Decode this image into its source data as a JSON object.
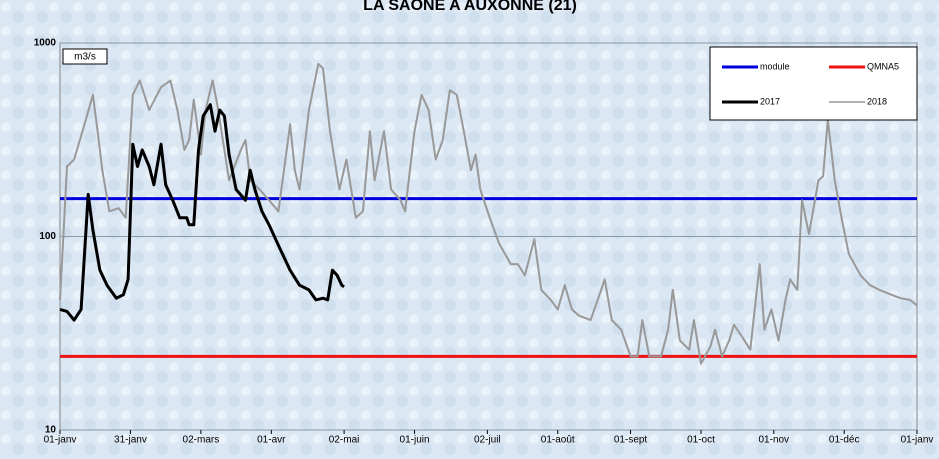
{
  "chart_data": {
    "type": "line",
    "title": "LA SAONE A AUXONNE (21)",
    "y_label": "m3/s",
    "log_y": true,
    "grid": true,
    "legend": "top-right",
    "xlim": [
      0,
      365
    ],
    "xticks": [
      {
        "value": 0,
        "label": "01-janv"
      },
      {
        "value": 30,
        "label": "31-janv"
      },
      {
        "value": 60,
        "label": "02-mars"
      },
      {
        "value": 90,
        "label": "01-avr"
      },
      {
        "value": 121,
        "label": "02-mai"
      },
      {
        "value": 151,
        "label": "01-juin"
      },
      {
        "value": 182,
        "label": "02-juil"
      },
      {
        "value": 212,
        "label": "01-août"
      },
      {
        "value": 243,
        "label": "01-sept"
      },
      {
        "value": 273,
        "label": "01-oct"
      },
      {
        "value": 304,
        "label": "01-nov"
      },
      {
        "value": 334,
        "label": "01-déc"
      },
      {
        "value": 365,
        "label": "01-janv"
      }
    ],
    "ylim": [
      10,
      1000
    ],
    "yticks": [
      10,
      100,
      1000
    ],
    "reference_lines": [
      {
        "name": "module",
        "color": "#0000dd",
        "value": 157
      },
      {
        "name": "QMNA5",
        "color": "#ee1111",
        "value": 24
      }
    ],
    "series": [
      {
        "name": "2017",
        "color": "#000000",
        "x": [
          0,
          3,
          6,
          9,
          12,
          14,
          17,
          20,
          24,
          27,
          29,
          31,
          33,
          35,
          38,
          40,
          43,
          45,
          48,
          51,
          54,
          55,
          57,
          59,
          61,
          64,
          66,
          68,
          70,
          72,
          75,
          79,
          81,
          83,
          86,
          89,
          94,
          98,
          102,
          106,
          109,
          112,
          114,
          116,
          118,
          120,
          121
        ],
        "values": [
          42,
          41,
          37,
          42,
          165,
          108,
          67,
          56,
          48,
          50,
          60,
          300,
          230,
          280,
          230,
          185,
          300,
          185,
          154,
          125,
          125,
          115,
          115,
          280,
          420,
          480,
          350,
          450,
          420,
          265,
          175,
          154,
          220,
          175,
          135,
          115,
          85,
          67,
          56,
          53,
          47,
          48,
          47,
          67,
          63,
          56,
          55
        ]
      },
      {
        "name": "2018",
        "color": "#999999",
        "x": [
          0,
          3,
          6,
          11,
          14,
          16,
          18,
          21,
          25,
          28,
          31,
          34,
          38,
          43,
          47,
          50,
          53,
          55,
          57,
          60,
          62,
          65,
          67,
          70,
          72,
          77,
          79,
          81,
          85,
          89,
          93,
          96,
          98,
          100,
          102,
          106,
          110,
          112,
          115,
          119,
          122,
          126,
          129,
          132,
          134,
          138,
          141,
          145,
          147,
          151,
          154,
          157,
          160,
          163,
          166,
          169,
          172,
          175,
          177,
          179,
          183,
          187,
          192,
          195,
          198,
          202,
          205,
          209,
          212,
          215,
          218,
          221,
          226,
          229,
          232,
          235,
          239,
          243,
          246,
          248,
          251,
          256,
          259,
          261,
          264,
          268,
          270,
          273,
          277,
          279,
          282,
          285,
          287,
          290,
          294,
          298,
          300,
          303,
          306,
          309,
          311,
          314,
          316,
          319,
          323,
          325,
          327,
          330,
          333,
          336,
          341,
          345,
          349,
          354,
          358,
          362,
          365
        ],
        "values": [
          47,
          230,
          250,
          400,
          540,
          350,
          220,
          135,
          140,
          125,
          540,
          640,
          450,
          590,
          640,
          450,
          280,
          315,
          510,
          265,
          450,
          640,
          480,
          280,
          195,
          280,
          315,
          195,
          175,
          154,
          135,
          250,
          380,
          220,
          175,
          450,
          780,
          740,
          350,
          175,
          250,
          125,
          135,
          350,
          195,
          350,
          175,
          154,
          135,
          350,
          540,
          450,
          250,
          315,
          570,
          540,
          350,
          220,
          265,
          175,
          125,
          92,
          72,
          72,
          63,
          97,
          53,
          47,
          42,
          56,
          42,
          39,
          37,
          47,
          60,
          37,
          33,
          24,
          24,
          37,
          24,
          24,
          33,
          53,
          29,
          26,
          37,
          22,
          27,
          33,
          24,
          29,
          35,
          31,
          26,
          72,
          33,
          42,
          29,
          47,
          60,
          53,
          154,
          103,
          195,
          205,
          400,
          195,
          122,
          81,
          63,
          56,
          53,
          50,
          48,
          47,
          44
        ]
      }
    ]
  }
}
